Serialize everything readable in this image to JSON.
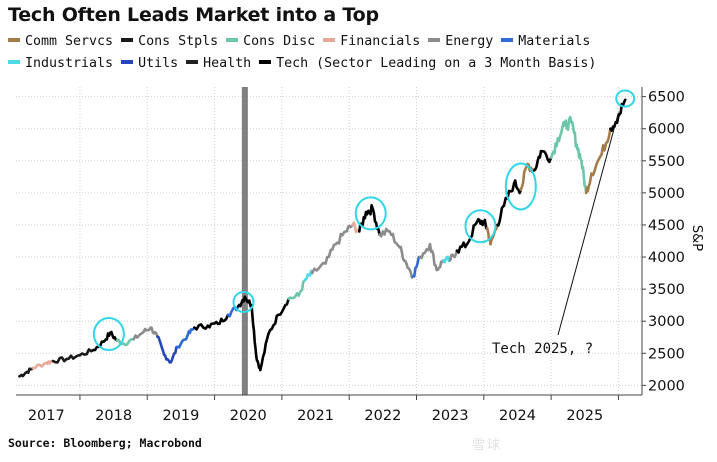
{
  "chart_data": {
    "type": "line",
    "title": "Tech Often Leads Market into a Top",
    "legend": [
      {
        "name": "Comm Servcs",
        "color": "#a47c4a"
      },
      {
        "name": "Cons Stpls",
        "color": "#1a1a1a"
      },
      {
        "name": "Cons Disc",
        "color": "#6cc6a8"
      },
      {
        "name": "Financials",
        "color": "#e8a99a"
      },
      {
        "name": "Energy",
        "color": "#8c8c8c"
      },
      {
        "name": "Materials",
        "color": "#2f6bd6"
      },
      {
        "name": "Industrials",
        "color": "#4fd8e6"
      },
      {
        "name": "Utils",
        "color": "#2646b8"
      },
      {
        "name": "Health",
        "color": "#222222"
      },
      {
        "name": "Tech (Sector Leading on a 3 Month Basis)",
        "color": "#000000"
      }
    ],
    "ylabel": "S&P",
    "y_ticks": [
      2000,
      2500,
      3000,
      3500,
      4000,
      4500,
      5000,
      5500,
      6000,
      6500
    ],
    "ylim": [
      1850,
      6650
    ],
    "x_tick_labels": [
      "2017",
      "2018",
      "2019",
      "2020",
      "2021",
      "2022",
      "2023",
      "2024",
      "2025"
    ],
    "xlim": [
      2016.55,
      2025.85
    ],
    "x_grid_at": [
      2017.5,
      2018.5,
      2019.5,
      2020.5,
      2021.5,
      2022.5,
      2023.5,
      2024.5,
      2025.5
    ],
    "recession_shade": {
      "x": 2019.95
    },
    "series": [
      {
        "name": "S&P 500",
        "points": [
          [
            2016.6,
            2140,
            "Cons Stpls"
          ],
          [
            2016.7,
            2200,
            "Cons Stpls"
          ],
          [
            2016.8,
            2270,
            "Financials"
          ],
          [
            2017.0,
            2350,
            "Financials"
          ],
          [
            2017.1,
            2380,
            "Cons Stpls"
          ],
          [
            2017.3,
            2410,
            "Cons Stpls"
          ],
          [
            2017.5,
            2470,
            "Cons Stpls"
          ],
          [
            2017.7,
            2550,
            "Tech (Sector Leading on a 3 Month Basis)"
          ],
          [
            2017.85,
            2680,
            "Tech (Sector Leading on a 3 Month Basis)"
          ],
          [
            2017.95,
            2820,
            "Tech (Sector Leading on a 3 Month Basis)"
          ],
          [
            2018.05,
            2700,
            "Cons Disc"
          ],
          [
            2018.15,
            2650,
            "Cons Disc"
          ],
          [
            2018.3,
            2720,
            "Energy"
          ],
          [
            2018.45,
            2840,
            "Energy"
          ],
          [
            2018.55,
            2900,
            "Energy"
          ],
          [
            2018.65,
            2760,
            "Utils"
          ],
          [
            2018.75,
            2480,
            "Utils"
          ],
          [
            2018.85,
            2360,
            "Utils"
          ],
          [
            2018.95,
            2600,
            "Materials"
          ],
          [
            2019.1,
            2780,
            "Materials"
          ],
          [
            2019.2,
            2900,
            "Tech (Sector Leading on a 3 Month Basis)"
          ],
          [
            2019.4,
            2930,
            "Tech (Sector Leading on a 3 Month Basis)"
          ],
          [
            2019.55,
            2960,
            "Tech (Sector Leading on a 3 Month Basis)"
          ],
          [
            2019.7,
            3100,
            "Materials"
          ],
          [
            2019.85,
            3230,
            "Tech (Sector Leading on a 3 Month Basis)"
          ],
          [
            2019.95,
            3380,
            "Tech (Sector Leading on a 3 Month Basis)"
          ],
          [
            2020.05,
            3250,
            "Tech (Sector Leading on a 3 Month Basis)"
          ],
          [
            2020.12,
            2450,
            "Tech (Sector Leading on a 3 Month Basis)"
          ],
          [
            2020.18,
            2240,
            "Tech (Sector Leading on a 3 Month Basis)"
          ],
          [
            2020.3,
            2800,
            "Tech (Sector Leading on a 3 Month Basis)"
          ],
          [
            2020.45,
            3100,
            "Tech (Sector Leading on a 3 Month Basis)"
          ],
          [
            2020.6,
            3350,
            "Cons Disc"
          ],
          [
            2020.75,
            3400,
            "Cons Disc"
          ],
          [
            2020.85,
            3650,
            "Industrials"
          ],
          [
            2020.95,
            3750,
            "Energy"
          ],
          [
            2021.15,
            3900,
            "Energy"
          ],
          [
            2021.3,
            4200,
            "Energy"
          ],
          [
            2021.45,
            4400,
            "Energy"
          ],
          [
            2021.55,
            4500,
            "Financials"
          ],
          [
            2021.65,
            4400,
            "Tech (Sector Leading on a 3 Month Basis)"
          ],
          [
            2021.75,
            4700,
            "Tech (Sector Leading on a 3 Month Basis)"
          ],
          [
            2021.85,
            4750,
            "Tech (Sector Leading on a 3 Month Basis)"
          ],
          [
            2021.95,
            4350,
            "Energy"
          ],
          [
            2022.1,
            4400,
            "Energy"
          ],
          [
            2022.25,
            4150,
            "Energy"
          ],
          [
            2022.35,
            3900,
            "Energy"
          ],
          [
            2022.45,
            3700,
            "Materials"
          ],
          [
            2022.55,
            4000,
            "Energy"
          ],
          [
            2022.7,
            4200,
            "Energy"
          ],
          [
            2022.8,
            3800,
            "Energy"
          ],
          [
            2022.9,
            3950,
            "Industrials"
          ],
          [
            2023.0,
            3950,
            "Energy"
          ],
          [
            2023.1,
            4100,
            "Tech (Sector Leading on a 3 Month Basis)"
          ],
          [
            2023.25,
            4200,
            "Tech (Sector Leading on a 3 Month Basis)"
          ],
          [
            2023.4,
            4550,
            "Tech (Sector Leading on a 3 Month Basis)"
          ],
          [
            2023.5,
            4550,
            "Tech (Sector Leading on a 3 Month Basis)"
          ],
          [
            2023.55,
            4450,
            "Comm Servcs"
          ],
          [
            2023.6,
            4200,
            "Comm Servcs"
          ],
          [
            2023.7,
            4500,
            "Tech (Sector Leading on a 3 Month Basis)"
          ],
          [
            2023.8,
            4800,
            "Tech (Sector Leading on a 3 Month Basis)"
          ],
          [
            2023.95,
            5150,
            "Tech (Sector Leading on a 3 Month Basis)"
          ],
          [
            2024.05,
            5050,
            "Comm Servcs"
          ],
          [
            2024.15,
            5450,
            "Comm Servcs"
          ],
          [
            2024.25,
            5350,
            "Tech (Sector Leading on a 3 Month Basis)"
          ],
          [
            2024.35,
            5650,
            "Tech (Sector Leading on a 3 Month Basis)"
          ],
          [
            2024.5,
            5550,
            "Cons Disc"
          ],
          [
            2024.6,
            5850,
            "Cons Disc"
          ],
          [
            2024.7,
            6050,
            "Cons Disc"
          ],
          [
            2024.8,
            6100,
            "Cons Disc"
          ],
          [
            2024.88,
            5750,
            "Cons Disc"
          ],
          [
            2024.95,
            5500,
            "Cons Disc"
          ],
          [
            2025.02,
            5000,
            "Comm Servcs"
          ],
          [
            2025.1,
            5300,
            "Comm Servcs"
          ],
          [
            2025.25,
            5600,
            "Comm Servcs"
          ],
          [
            2025.38,
            6000,
            "Tech (Sector Leading on a 3 Month Basis)"
          ],
          [
            2025.5,
            6200,
            "Tech (Sector Leading on a 3 Month Basis)"
          ],
          [
            2025.6,
            6450,
            "Tech (Sector Leading on a 3 Month Basis)"
          ]
        ]
      }
    ],
    "highlight_circles_at": [
      [
        2017.93,
        2800
      ],
      [
        2019.93,
        3300
      ],
      [
        2021.82,
        4680
      ],
      [
        2023.45,
        4480
      ],
      [
        2024.05,
        5100
      ],
      [
        2025.6,
        6470
      ]
    ],
    "annotation": {
      "text": "Tech 2025, ?",
      "points_to": [
        2025.5,
        6250
      ]
    },
    "source": "Source: Bloomberg; Macrobond",
    "watermark": "雪球"
  },
  "colors": {
    "axis": "#444444",
    "grid": "#d0d0d0",
    "shade": "#808080",
    "circle": "#31d6e8"
  }
}
